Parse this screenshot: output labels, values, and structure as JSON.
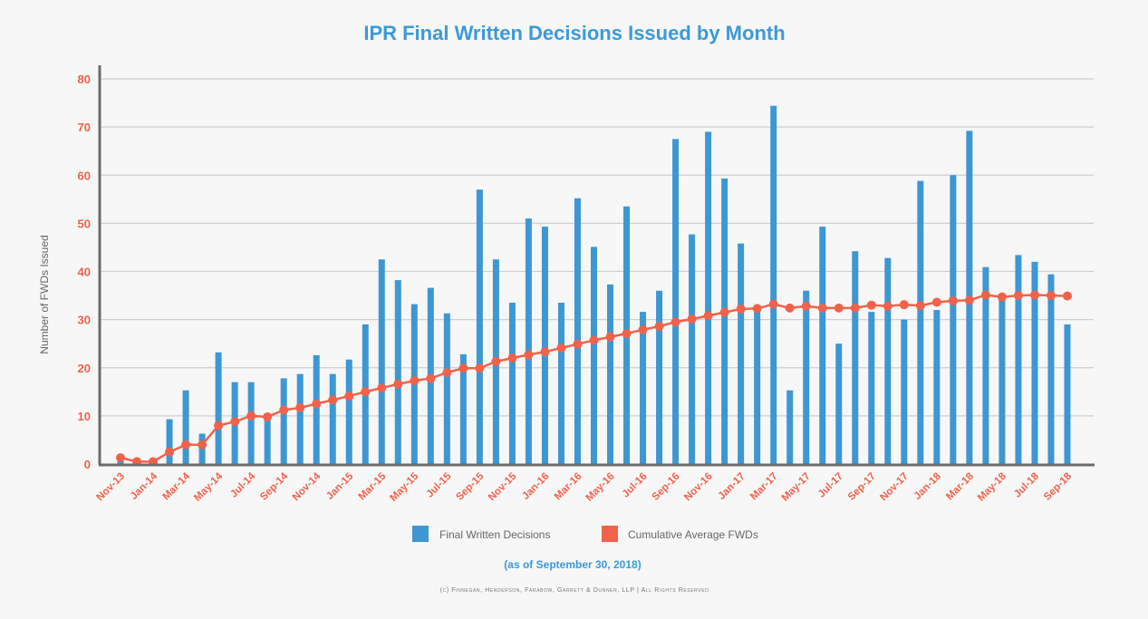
{
  "chart_data": {
    "type": "bar+line",
    "title": "IPR Final Written Decisions Issued by Month",
    "subtitle": "(as of September 30, 2018)",
    "ylabel": "Number of FWDs Issued",
    "xlabel": "",
    "ylim": [
      0,
      80
    ],
    "yticks": [
      "0",
      "10",
      "20",
      "30",
      "40",
      "50",
      "60",
      "70",
      "80"
    ],
    "grid": true,
    "legend_placement": "bottom",
    "categories": [
      "Nov-13",
      "Dec-13",
      "Jan-14",
      "Feb-14",
      "Mar-14",
      "Apr-14",
      "May-14",
      "Jun-14",
      "Jul-14",
      "Aug-14",
      "Sep-14",
      "Oct-14",
      "Nov-14",
      "Dec-14",
      "Jan-15",
      "Feb-15",
      "Mar-15",
      "Apr-15",
      "May-15",
      "Jun-15",
      "Jul-15",
      "Aug-15",
      "Sep-15",
      "Oct-15",
      "Nov-15",
      "Dec-15",
      "Jan-16",
      "Feb-16",
      "Mar-16",
      "Apr-16",
      "May-16",
      "Jun-16",
      "Jul-16",
      "Aug-16",
      "Sep-16",
      "Oct-16",
      "Nov-16",
      "Dec-16",
      "Jan-17",
      "Feb-17",
      "Mar-17",
      "Apr-17",
      "May-17",
      "Jun-17",
      "Jul-17",
      "Aug-17",
      "Sep-17",
      "Oct-17",
      "Nov-17",
      "Dec-17",
      "Jan-18",
      "Feb-18",
      "Mar-18",
      "Apr-18",
      "May-18",
      "Jun-18",
      "Jul-18",
      "Aug-18",
      "Sep-18"
    ],
    "tick_labels_shown": [
      "Nov-13",
      "Jan-14",
      "Mar-14",
      "May-14",
      "Jul-14",
      "Sep-14",
      "Nov-14",
      "Jan-15",
      "Mar-15",
      "May-15",
      "Jul-15",
      "Sep-15",
      "Nov-15",
      "Jan-16",
      "Mar-16",
      "May-16",
      "Jul-16",
      "Sep-16",
      "Nov-16",
      "Jan-17",
      "Mar-17",
      "May-17",
      "Jul-17",
      "Sep-17",
      "Nov-17",
      "Jan-18",
      "Mar-18",
      "May-18",
      "Jul-18",
      "Sep-18"
    ],
    "series": [
      {
        "name": "Final Written Decisions",
        "type": "bar",
        "color": "#3d97d3",
        "values": [
          1,
          0,
          1,
          9.3,
          15.3,
          6.3,
          23.2,
          17,
          17,
          10,
          17.8,
          18.7,
          22.6,
          18.7,
          21.7,
          29,
          42.5,
          38.2,
          33.2,
          36.6,
          31.3,
          22.8,
          57,
          42.5,
          33.5,
          51,
          49.3,
          33.5,
          55.2,
          45.1,
          37.3,
          53.5,
          31.6,
          36,
          67.5,
          47.7,
          69,
          59.3,
          45.8,
          32,
          74.4,
          15.3,
          36,
          49.3,
          25,
          44.2,
          31.6,
          42.8,
          30,
          58.8,
          32,
          60,
          69.2,
          40.9,
          34.5,
          43.4,
          42,
          39.4,
          29
        ]
      },
      {
        "name": "Cumulative Average FWDs",
        "type": "line",
        "color": "#f0624a",
        "values": [
          1.3,
          0.5,
          0.5,
          2.5,
          4,
          4,
          8,
          8.8,
          10,
          9.8,
          11.2,
          11.7,
          12.5,
          13.3,
          14.1,
          15,
          15.8,
          16.6,
          17.3,
          17.8,
          19,
          19.9,
          19.9,
          21.3,
          22,
          22.7,
          23.3,
          24.1,
          24.9,
          25.7,
          26.4,
          27.1,
          27.9,
          28.6,
          29.5,
          30.1,
          30.8,
          31.5,
          32.2,
          32.3,
          33.2,
          32.4,
          32.8,
          32.4,
          32.4,
          32.4,
          33,
          32.8,
          33.1,
          32.9,
          33.6,
          33.9,
          34,
          35.1,
          34.7,
          35,
          35.1,
          35,
          34.9
        ]
      }
    ]
  },
  "footer": "(c) Finnegan, Henderson, Farabow, Garrett & Dunner, LLP | All Rights Reserved"
}
